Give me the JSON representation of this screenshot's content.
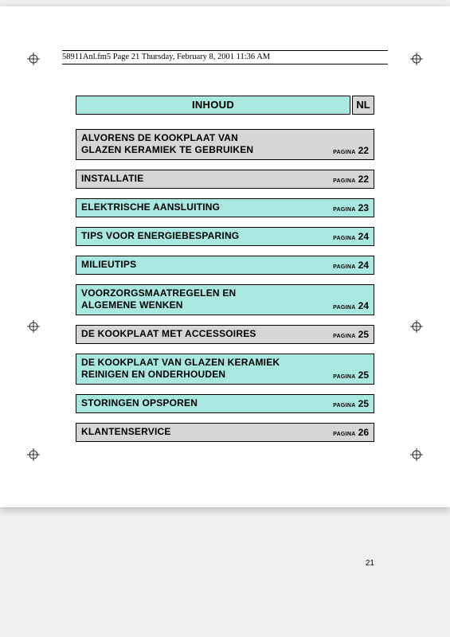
{
  "header": "58911Anl.fm5  Page 21  Thursday, February 8, 2001  11:36 AM",
  "title": "INHOUD",
  "lang": "NL",
  "page_label": "PAGINA",
  "page_number": "21",
  "colors": {
    "teal": "#a9e8e1",
    "gray": "#d6d6d6"
  },
  "entries": [
    {
      "title": "ALVORENS DE KOOKPLAAT VAN\nGLAZEN KERAMIEK TE GEBRUIKEN",
      "page": "22",
      "variant": "gray"
    },
    {
      "title": "INSTALLATIE",
      "page": "22",
      "variant": "gray"
    },
    {
      "title": "ELEKTRISCHE AANSLUITING",
      "page": "23",
      "variant": "teal"
    },
    {
      "title": "TIPS VOOR ENERGIEBESPARING",
      "page": "24",
      "variant": "teal"
    },
    {
      "title": "MILIEUTIPS",
      "page": "24",
      "variant": "teal"
    },
    {
      "title": "VOORZORGSMAATREGELEN EN\nALGEMENE WENKEN",
      "page": "24",
      "variant": "teal"
    },
    {
      "title": "DE KOOKPLAAT MET ACCESSOIRES",
      "page": "25",
      "variant": "gray"
    },
    {
      "title": "DE KOOKPLAAT VAN GLAZEN KERAMIEK\nREINIGEN EN ONDERHOUDEN",
      "page": "25",
      "variant": "teal"
    },
    {
      "title": "STORINGEN OPSPOREN",
      "page": "25",
      "variant": "teal"
    },
    {
      "title": "KLANTENSERVICE",
      "page": "26",
      "variant": "gray"
    }
  ]
}
